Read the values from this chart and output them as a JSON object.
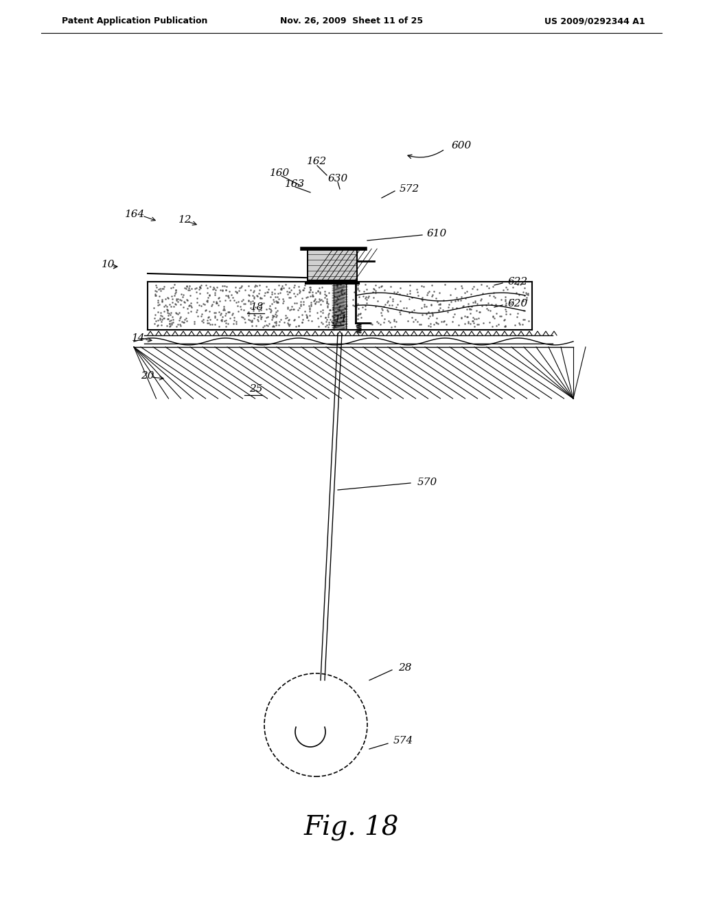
{
  "header_left": "Patent Application Publication",
  "header_mid": "Nov. 26, 2009  Sheet 11 of 25",
  "header_right": "US 2009/0292344 A1",
  "figure_label": "Fig. 18",
  "bg_color": "#ffffff",
  "line_color": "#000000"
}
